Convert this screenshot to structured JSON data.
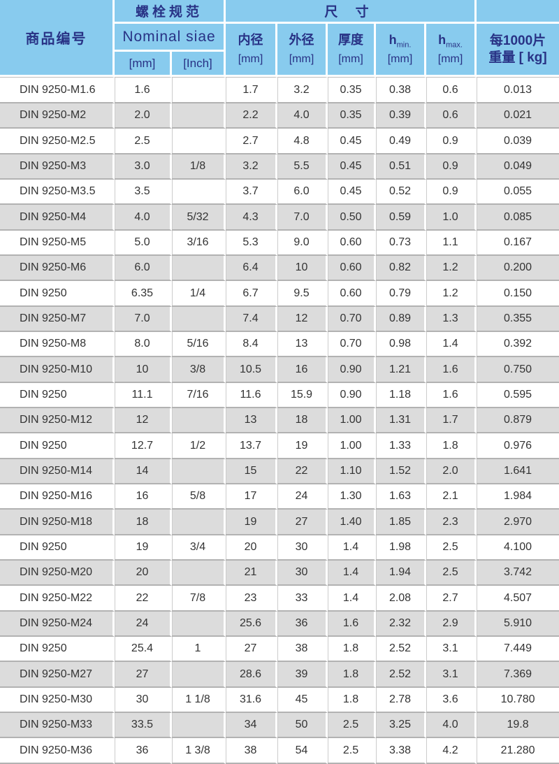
{
  "colors": {
    "header_bg": "#88CBEE",
    "header_text": "#283285",
    "row_alt_bg": "#DCDCDC",
    "grid_line": "#B2B2B2"
  },
  "table": {
    "header": {
      "product_label": "商品编号",
      "spec_group_zh": "螺栓规范",
      "spec_group_en": "Nominal siae",
      "spec_mm": "[mm]",
      "spec_inch": "[Inch]",
      "dim_group": "尺 寸",
      "dim_cols": [
        {
          "label": "内径",
          "unit": "[mm]"
        },
        {
          "label": "外径",
          "unit": "[mm]"
        },
        {
          "label": "厚度",
          "unit": "[mm]"
        },
        {
          "label": "h",
          "sub": "min.",
          "unit": "[mm]"
        },
        {
          "label": "h",
          "sub": "max.",
          "unit": "[mm]"
        }
      ],
      "weight_line1": "每1000片",
      "weight_line2": "重量 [ kg]"
    },
    "rows": [
      [
        "DIN 9250-M1.6",
        "1.6",
        "",
        "1.7",
        "3.2",
        "0.35",
        "0.38",
        "0.6",
        "0.013"
      ],
      [
        "DIN 9250-M2",
        "2.0",
        "",
        "2.2",
        "4.0",
        "0.35",
        "0.39",
        "0.6",
        "0.021"
      ],
      [
        "DIN 9250-M2.5",
        "2.5",
        "",
        "2.7",
        "4.8",
        "0.45",
        "0.49",
        "0.9",
        "0.039"
      ],
      [
        "DIN 9250-M3",
        "3.0",
        "1/8",
        "3.2",
        "5.5",
        "0.45",
        "0.51",
        "0.9",
        "0.049"
      ],
      [
        "DIN 9250-M3.5",
        "3.5",
        "",
        "3.7",
        "6.0",
        "0.45",
        "0.52",
        "0.9",
        "0.055"
      ],
      [
        "DIN 9250-M4",
        "4.0",
        "5/32",
        "4.3",
        "7.0",
        "0.50",
        "0.59",
        "1.0",
        "0.085"
      ],
      [
        "DIN 9250-M5",
        "5.0",
        "3/16",
        "5.3",
        "9.0",
        "0.60",
        "0.73",
        "1.1",
        "0.167"
      ],
      [
        "DIN 9250-M6",
        "6.0",
        "",
        "6.4",
        "10",
        "0.60",
        "0.82",
        "1.2",
        "0.200"
      ],
      [
        "DIN 9250",
        "6.35",
        "1/4",
        "6.7",
        "9.5",
        "0.60",
        "0.79",
        "1.2",
        "0.150"
      ],
      [
        "DIN 9250-M7",
        "7.0",
        "",
        "7.4",
        "12",
        "0.70",
        "0.89",
        "1.3",
        "0.355"
      ],
      [
        "DIN 9250-M8",
        "8.0",
        "5/16",
        "8.4",
        "13",
        "0.70",
        "0.98",
        "1.4",
        "0.392"
      ],
      [
        "DIN 9250-M10",
        "10",
        "3/8",
        "10.5",
        "16",
        "0.90",
        "1.21",
        "1.6",
        "0.750"
      ],
      [
        "DIN 9250",
        "11.1",
        "7/16",
        "11.6",
        "15.9",
        "0.90",
        "1.18",
        "1.6",
        "0.595"
      ],
      [
        "DIN 9250-M12",
        "12",
        "",
        "13",
        "18",
        "1.00",
        "1.31",
        "1.7",
        "0.879"
      ],
      [
        "DIN 9250",
        "12.7",
        "1/2",
        "13.7",
        "19",
        "1.00",
        "1.33",
        "1.8",
        "0.976"
      ],
      [
        "DIN 9250-M14",
        "14",
        "",
        "15",
        "22",
        "1.10",
        "1.52",
        "2.0",
        "1.641"
      ],
      [
        "DIN 9250-M16",
        "16",
        "5/8",
        "17",
        "24",
        "1.30",
        "1.63",
        "2.1",
        "1.984"
      ],
      [
        "DIN 9250-M18",
        "18",
        "",
        "19",
        "27",
        "1.40",
        "1.85",
        "2.3",
        "2.970"
      ],
      [
        "DIN 9250",
        "19",
        "3/4",
        "20",
        "30",
        "1.4",
        "1.98",
        "2.5",
        "4.100"
      ],
      [
        "DIN 9250-M20",
        "20",
        "",
        "21",
        "30",
        "1.4",
        "1.94",
        "2.5",
        "3.742"
      ],
      [
        "DIN 9250-M22",
        "22",
        "7/8",
        "23",
        "33",
        "1.4",
        "2.08",
        "2.7",
        "4.507"
      ],
      [
        "DIN 9250-M24",
        "24",
        "",
        "25.6",
        "36",
        "1.6",
        "2.32",
        "2.9",
        "5.910"
      ],
      [
        "DIN 9250",
        "25.4",
        "1",
        "27",
        "38",
        "1.8",
        "2.52",
        "3.1",
        "7.449"
      ],
      [
        "DIN 9250-M27",
        "27",
        "",
        "28.6",
        "39",
        "1.8",
        "2.52",
        "3.1",
        "7.369"
      ],
      [
        "DIN 9250-M30",
        "30",
        "1 1/8",
        "31.6",
        "45",
        "1.8",
        "2.78",
        "3.6",
        "10.780"
      ],
      [
        "DIN 9250-M33",
        "33.5",
        "",
        "34",
        "50",
        "2.5",
        "3.25",
        "4.0",
        "19.8"
      ],
      [
        "DIN 9250-M36",
        "36",
        "1 3/8",
        "38",
        "54",
        "2.5",
        "3.38",
        "4.2",
        "21.280"
      ]
    ]
  }
}
